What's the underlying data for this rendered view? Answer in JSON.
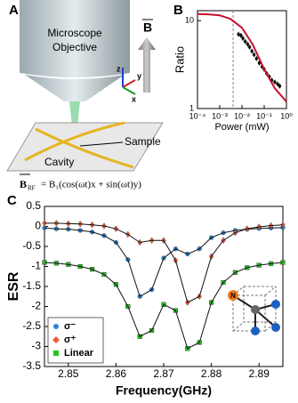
{
  "diagram": {
    "panel_labels": [
      "A",
      "B",
      "C"
    ],
    "objective": [
      "Microscope",
      "Objective"
    ],
    "field_symbol": "B",
    "axes": [
      "z",
      "y",
      "x"
    ],
    "sample": "Sample",
    "cavity": "Cavity",
    "rf_symbol": "B",
    "rf_subscript": "RF",
    "rf_equation": "= B₁(cos(ωt)x + sin(ωt)y)",
    "nv_label": "N"
  },
  "chart_data": [
    {
      "type": "scatter",
      "ylabel": "Ratio",
      "xlabel": "Power (mW)",
      "xlog": true,
      "ylog": true,
      "xlim": [
        0.0001,
        1
      ],
      "ylim": [
        1,
        13
      ],
      "xticks": [
        {
          "value": 0.0001,
          "label": "10⁻⁴"
        },
        {
          "value": 0.001,
          "label": "10⁻³"
        },
        {
          "value": 0.01,
          "label": "10⁻²"
        },
        {
          "value": 0.1,
          "label": "10⁻¹"
        },
        {
          "value": 1,
          "label": "10⁰"
        }
      ],
      "yticks": [
        1,
        10
      ],
      "vline": 0.004,
      "series": [
        {
          "color": "#000000",
          "marker": "diamond",
          "x": [
            0.007,
            0.009,
            0.011,
            0.014,
            0.018,
            0.022,
            0.028,
            0.035,
            0.045,
            0.06,
            0.08,
            0.1,
            0.13,
            0.17,
            0.22,
            0.3,
            0.4,
            0.5
          ],
          "values": [
            7,
            6.8,
            6.3,
            5.8,
            5.4,
            5,
            4.5,
            4.1,
            3.7,
            3.3,
            3,
            2.8,
            2.5,
            2.3,
            2.1,
            2,
            1.9,
            1.8
          ]
        },
        {
          "color": "#c8102e",
          "marker": "none",
          "x": [
            0.0001,
            0.0003,
            0.001,
            0.003,
            0.01,
            0.03,
            0.1,
            0.3,
            1
          ],
          "values": [
            11.9,
            11.8,
            11.5,
            10.5,
            8.3,
            5.4,
            2.8,
            1.7,
            1.2
          ]
        }
      ]
    },
    {
      "type": "scatter",
      "ylabel": "ESR",
      "xlabel": "Frequency(GHz)",
      "legend": "lower left",
      "fit": true,
      "xlim": [
        2.845,
        2.895
      ],
      "ylim": [
        -3.5,
        0.5
      ],
      "xticks": [
        2.85,
        2.86,
        2.87,
        2.88,
        2.89
      ],
      "yticks": [
        -3.5,
        -3,
        -2.5,
        -2,
        -1.5,
        -1,
        -0.5,
        0,
        0.5
      ],
      "x": [
        2.845,
        2.8475,
        2.85,
        2.8525,
        2.855,
        2.8575,
        2.86,
        2.8625,
        2.865,
        2.8675,
        2.87,
        2.8725,
        2.875,
        2.8775,
        2.88,
        2.8825,
        2.885,
        2.8875,
        2.89,
        2.8925,
        2.895
      ],
      "series": [
        {
          "name": "σ⁻",
          "color": "#2a86d8",
          "marker": "circle",
          "values": [
            -0.04,
            -0.06,
            -0.07,
            -0.1,
            -0.14,
            -0.23,
            -0.4,
            -0.83,
            -1.75,
            -1.58,
            -0.79,
            -0.56,
            -0.69,
            -0.56,
            -0.28,
            -0.16,
            -0.1,
            -0.07,
            -0.05,
            -0.04,
            -0.03
          ]
        },
        {
          "name": "σ⁺",
          "color": "#ec5a3c",
          "marker": "diamond",
          "values": [
            0.08,
            0.08,
            0.07,
            0.06,
            0.04,
            0.01,
            -0.06,
            -0.2,
            -0.4,
            -0.35,
            -0.35,
            -0.85,
            -1.9,
            -1.75,
            -0.75,
            -0.35,
            -0.16,
            -0.06,
            -0.01,
            0.02,
            0.04
          ]
        },
        {
          "name": "Linear",
          "color": "#22c21f",
          "marker": "square",
          "values": [
            -0.9,
            -0.92,
            -0.95,
            -1,
            -1.07,
            -1.2,
            -1.45,
            -2,
            -2.75,
            -2.6,
            -1.95,
            -2.1,
            -3.05,
            -2.9,
            -1.9,
            -1.4,
            -1.15,
            -1.03,
            -0.97,
            -0.93,
            -0.9
          ]
        }
      ]
    }
  ]
}
